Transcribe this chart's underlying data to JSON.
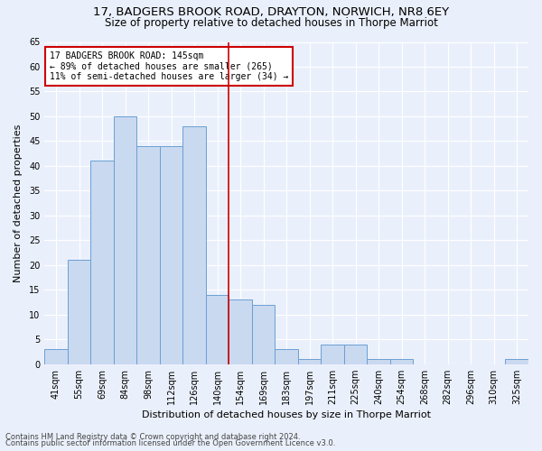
{
  "title1": "17, BADGERS BROOK ROAD, DRAYTON, NORWICH, NR8 6EY",
  "title2": "Size of property relative to detached houses in Thorpe Marriot",
  "xlabel": "Distribution of detached houses by size in Thorpe Marriot",
  "ylabel": "Number of detached properties",
  "footer1": "Contains HM Land Registry data © Crown copyright and database right 2024.",
  "footer2": "Contains public sector information licensed under the Open Government Licence v3.0.",
  "bin_labels": [
    "41sqm",
    "55sqm",
    "69sqm",
    "84sqm",
    "98sqm",
    "112sqm",
    "126sqm",
    "140sqm",
    "154sqm",
    "169sqm",
    "183sqm",
    "197sqm",
    "211sqm",
    "225sqm",
    "240sqm",
    "254sqm",
    "268sqm",
    "282sqm",
    "296sqm",
    "310sqm",
    "325sqm"
  ],
  "values": [
    3,
    21,
    41,
    50,
    44,
    44,
    48,
    14,
    13,
    12,
    3,
    1,
    4,
    4,
    1,
    1,
    0,
    0,
    0,
    0,
    1
  ],
  "bar_color": "#c9d9f0",
  "bar_edge_color": "#6b9fd4",
  "red_line_x": 7.5,
  "annotation_line1": "17 BADGERS BROOK ROAD: 145sqm",
  "annotation_line2": "← 89% of detached houses are smaller (265)",
  "annotation_line3": "11% of semi-detached houses are larger (34) →",
  "annotation_box_color": "#ffffff",
  "annotation_box_edge": "#cc0000",
  "red_line_color": "#cc0000",
  "ylim": [
    0,
    65
  ],
  "yticks": [
    0,
    5,
    10,
    15,
    20,
    25,
    30,
    35,
    40,
    45,
    50,
    55,
    60,
    65
  ],
  "bg_color": "#eaf0fb",
  "title1_fontsize": 9.5,
  "title2_fontsize": 8.5,
  "xlabel_fontsize": 8,
  "ylabel_fontsize": 8,
  "tick_fontsize": 7,
  "footer_fontsize": 6,
  "annot_fontsize": 7
}
